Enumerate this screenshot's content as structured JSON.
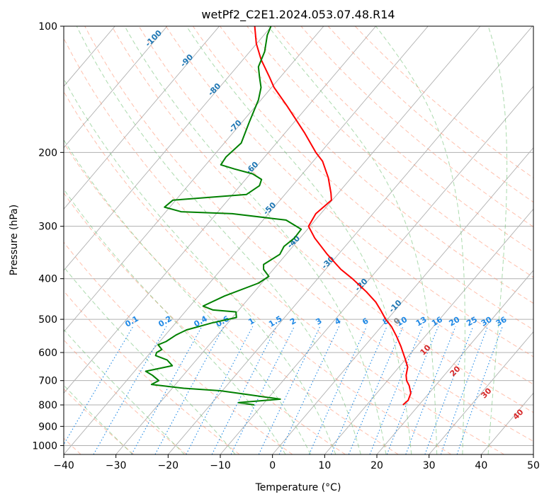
{
  "chart_data": {
    "type": "line",
    "title": "wetPf2_C2E1.2024.053.07.48.R14",
    "xlabel": "Temperature (°C)",
    "ylabel": "Pressure (hPa)",
    "xlim": [
      -40,
      50
    ],
    "ylim": [
      1050,
      100
    ],
    "y_scale": "log",
    "x_ticks": [
      -40,
      -30,
      -20,
      -10,
      0,
      10,
      20,
      30,
      40,
      50
    ],
    "x_tick_labels": [
      "−40",
      "−30",
      "−20",
      "−10",
      "0",
      "10",
      "20",
      "30",
      "40",
      "50"
    ],
    "y_ticks": [
      100,
      200,
      300,
      400,
      500,
      600,
      700,
      800,
      900,
      1000
    ],
    "y_tick_labels": [
      "100",
      "200",
      "300",
      "400",
      "500",
      "600",
      "700",
      "800",
      "900",
      "1000"
    ],
    "grid": true,
    "series": [
      {
        "color": "#ff0000",
        "points": [
          [
            25,
            800
          ],
          [
            26,
            780
          ],
          [
            26.5,
            750
          ],
          [
            26.2,
            720
          ],
          [
            25.7,
            700
          ],
          [
            25.6,
            680
          ],
          [
            25.9,
            650
          ],
          [
            25.4,
            620
          ],
          [
            24.6,
            580
          ],
          [
            23.8,
            550
          ],
          [
            22.8,
            520
          ],
          [
            21.7,
            500
          ],
          [
            20.7,
            475
          ],
          [
            19.8,
            455
          ],
          [
            18.0,
            430
          ],
          [
            15.3,
            400
          ],
          [
            13.1,
            380
          ],
          [
            10.5,
            350
          ],
          [
            8.1,
            320
          ],
          [
            6.9,
            300
          ],
          [
            8.3,
            280
          ],
          [
            11.3,
            260
          ],
          [
            11.2,
            250
          ],
          [
            10.7,
            230
          ],
          [
            9.6,
            210
          ],
          [
            8.3,
            200
          ],
          [
            6.2,
            180
          ],
          [
            2.8,
            155
          ],
          [
            0.3,
            140
          ],
          [
            -0.6,
            132
          ],
          [
            -2.2,
            120
          ],
          [
            -3.1,
            110
          ],
          [
            -3.4,
            100
          ]
        ]
      },
      {
        "color": "#008000",
        "points": [
          [
            -3.5,
            800
          ],
          [
            -6.5,
            790
          ],
          [
            1.5,
            775
          ],
          [
            -5,
            755
          ],
          [
            -10,
            740
          ],
          [
            -17,
            730
          ],
          [
            -23.2,
            715
          ],
          [
            -21.8,
            700
          ],
          [
            -23,
            680
          ],
          [
            -24.3,
            665
          ],
          [
            -19.2,
            645
          ],
          [
            -20.2,
            625
          ],
          [
            -22.4,
            610
          ],
          [
            -22.2,
            600
          ],
          [
            -21.2,
            590
          ],
          [
            -21.9,
            575
          ],
          [
            -20.4,
            565
          ],
          [
            -18.5,
            545
          ],
          [
            -16.5,
            530
          ],
          [
            -11.6,
            510
          ],
          [
            -6.9,
            495
          ],
          [
            -7.0,
            480
          ],
          [
            -11.4,
            475
          ],
          [
            -13.3,
            465
          ],
          [
            -9.2,
            440
          ],
          [
            -2.7,
            410
          ],
          [
            -0.7,
            395
          ],
          [
            -1.7,
            380
          ],
          [
            -1.7,
            370
          ],
          [
            1.4,
            350
          ],
          [
            2.2,
            335
          ],
          [
            4.2,
            320
          ],
          [
            5.5,
            305
          ],
          [
            2.6,
            290
          ],
          [
            -7.7,
            280
          ],
          [
            -17.5,
            277
          ],
          [
            -20.7,
            270
          ],
          [
            -19.1,
            260
          ],
          [
            -5.0,
            252
          ],
          [
            -2.5,
            240
          ],
          [
            -2.1,
            232
          ],
          [
            -3.8,
            225
          ],
          [
            -7.3,
            219
          ],
          [
            -9.9,
            214
          ],
          [
            -8.9,
            205
          ],
          [
            -6.0,
            190
          ],
          [
            -4.5,
            170
          ],
          [
            -2.7,
            150
          ],
          [
            -2.2,
            140
          ],
          [
            -2.5,
            132
          ],
          [
            -2.7,
            125
          ],
          [
            -1.5,
            115
          ],
          [
            -1.0,
            105
          ],
          [
            -0.3,
            100
          ]
        ]
      }
    ],
    "dry_adiabats_C": [
      -60,
      -50,
      -40,
      -30,
      -20,
      -10,
      0,
      10,
      20,
      30,
      40,
      50,
      60,
      70,
      80,
      90,
      100,
      110,
      120,
      130,
      140,
      150
    ],
    "moist_adiabats_C": [
      -30,
      -20,
      -10,
      0,
      5,
      10,
      15,
      20,
      25,
      30,
      35,
      40
    ],
    "mixing_ratio_labels": [
      "0.1",
      "0.2",
      "0.4",
      "0.6",
      "1",
      "1.5",
      "2",
      "3",
      "4",
      "6",
      "8",
      "10",
      "13",
      "16",
      "20",
      "25",
      "30",
      "36"
    ],
    "isotherm_labels_blue": [
      "-100",
      "-90",
      "-80",
      "-70",
      "-60",
      "-50",
      "-40",
      "-30",
      "-20",
      "-10"
    ],
    "isotherm_labels_gray": [
      "0"
    ],
    "isotherm_labels_red": [
      "10",
      "20",
      "30",
      "40"
    ],
    "colors": {
      "temperature": "#ff0000",
      "dewpoint": "#008000",
      "dry_adiabat": "#ff8c69",
      "moist_adiabat": "#66bb6a",
      "mixing_ratio": "#1e88e5",
      "isotherm_label_blue": "#1f77b4",
      "isotherm_label_red": "#d62728",
      "isotherm_label_gray": "#808080"
    }
  }
}
